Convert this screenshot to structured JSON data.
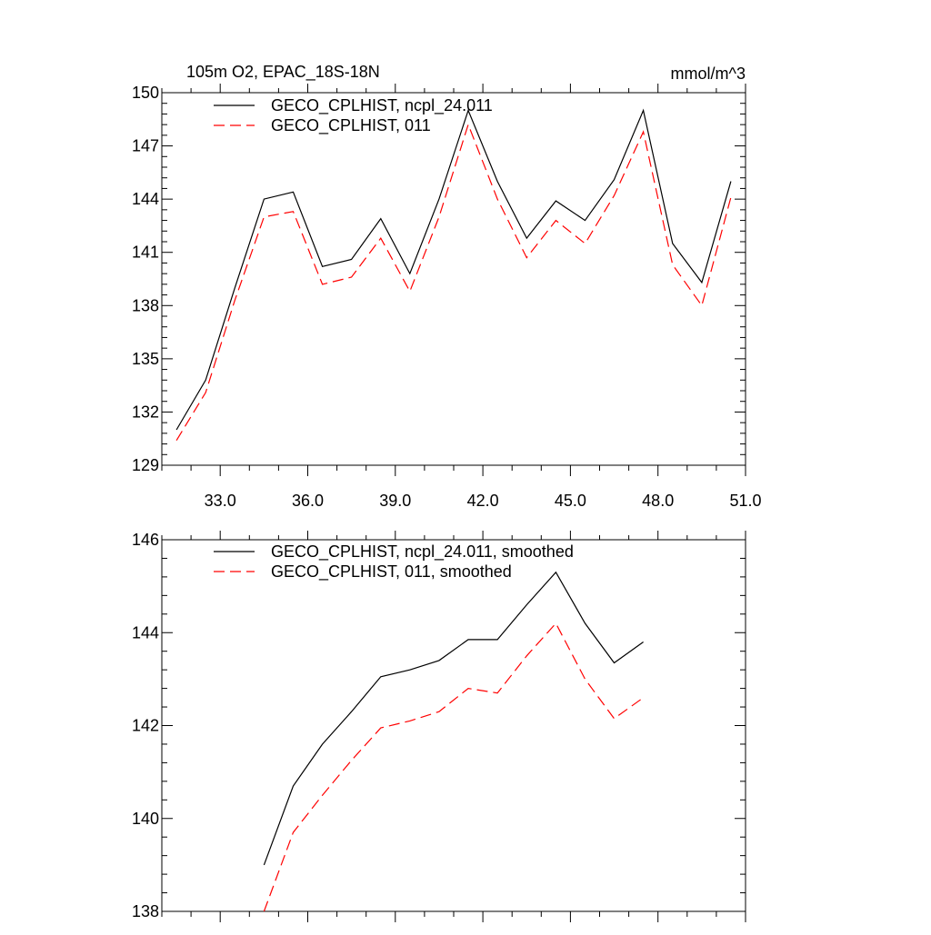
{
  "chart_data": [
    {
      "type": "line",
      "title": "105m O2, EPAC_18S-18N",
      "units": "mmol/m^3",
      "xlim": [
        31.0,
        51.0
      ],
      "ylim": [
        129,
        150
      ],
      "xticks": [
        33.0,
        36.0,
        39.0,
        42.0,
        45.0,
        48.0,
        51.0
      ],
      "xtick_labels": [
        "33.0",
        "36.0",
        "39.0",
        "42.0",
        "45.0",
        "48.0",
        "51.0"
      ],
      "yticks": [
        129,
        132,
        135,
        138,
        141,
        144,
        147,
        150
      ],
      "ytick_labels": [
        "129",
        "132",
        "135",
        "138",
        "141",
        "144",
        "147",
        "150"
      ],
      "x": [
        31.5,
        32.5,
        33.5,
        34.5,
        35.5,
        36.5,
        37.5,
        38.5,
        39.5,
        40.5,
        41.5,
        42.5,
        43.5,
        44.5,
        45.5,
        46.5,
        47.5,
        48.5,
        49.5,
        50.5
      ],
      "series": [
        {
          "name": "GECO_CPLHIST, ncpl_24.011",
          "color": "#000000",
          "dash": "solid",
          "values": [
            131.0,
            133.8,
            139.0,
            144.0,
            144.4,
            140.2,
            140.6,
            142.9,
            139.8,
            144.0,
            149.0,
            145.0,
            141.8,
            143.9,
            142.8,
            145.1,
            149.0,
            141.5,
            139.3,
            145.0
          ]
        },
        {
          "name": "GECO_CPLHIST, 011",
          "color": "#ff0000",
          "dash": "dashed",
          "values": [
            130.4,
            133.1,
            138.3,
            143.0,
            143.3,
            139.2,
            139.6,
            141.8,
            138.8,
            143.0,
            148.2,
            144.0,
            140.7,
            142.8,
            141.5,
            144.2,
            147.8,
            140.3,
            138.0,
            144.1
          ]
        }
      ]
    },
    {
      "type": "line",
      "title": "",
      "units": "",
      "xlim": [
        31.0,
        51.0
      ],
      "ylim": [
        138,
        146
      ],
      "xticks": [
        33.0,
        36.0,
        39.0,
        42.0,
        45.0,
        48.0,
        51.0
      ],
      "yticks": [
        138,
        140,
        142,
        144,
        146
      ],
      "ytick_labels": [
        "138",
        "140",
        "142",
        "144",
        "146"
      ],
      "x": [
        34.5,
        35.5,
        36.5,
        37.5,
        38.5,
        39.5,
        40.5,
        41.5,
        42.5,
        43.5,
        44.5,
        45.5,
        46.5,
        47.5
      ],
      "series": [
        {
          "name": "GECO_CPLHIST, ncpl_24.011, smoothed",
          "color": "#000000",
          "dash": "solid",
          "values": [
            139.0,
            140.7,
            141.6,
            142.3,
            143.05,
            143.2,
            143.4,
            143.85,
            143.85,
            144.6,
            145.3,
            144.2,
            143.35,
            143.8
          ]
        },
        {
          "name": "GECO_CPLHIST, 011, smoothed",
          "color": "#ff0000",
          "dash": "dashed",
          "values": [
            138.0,
            139.7,
            140.5,
            141.25,
            141.95,
            142.1,
            142.3,
            142.8,
            142.7,
            143.5,
            144.2,
            143.0,
            142.15,
            142.6
          ]
        }
      ]
    }
  ]
}
